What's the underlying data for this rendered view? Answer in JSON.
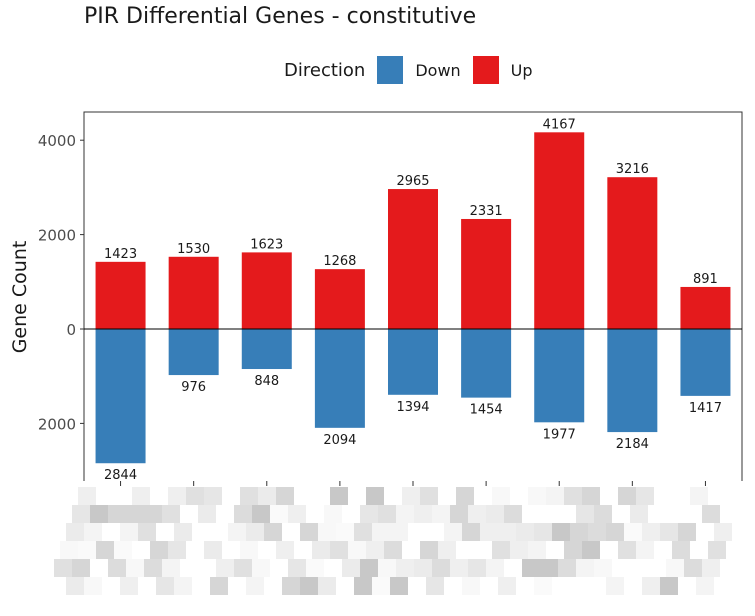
{
  "chart_data": {
    "type": "bar",
    "title": "PIR Differential Genes - constitutive",
    "xlabel": "",
    "ylabel": "Gene Count",
    "legend_title": "Direction",
    "legend_position": "top",
    "grid": false,
    "ylim": [
      -3200,
      4300
    ],
    "yticks": [
      {
        "value": 4000,
        "label": "4000"
      },
      {
        "value": 2000,
        "label": "2000"
      },
      {
        "value": 0,
        "label": "0"
      },
      {
        "value": -2000,
        "label": "2000"
      }
    ],
    "categories": [
      "",
      "",
      "",
      "",
      "",
      "",
      "",
      "",
      ""
    ],
    "series": [
      {
        "name": "Down",
        "color": "#377EB8",
        "values": [
          -2844,
          -976,
          -848,
          -2094,
          -1394,
          -1454,
          -1977,
          -2184,
          -1417
        ]
      },
      {
        "name": "Up",
        "color": "#E41A1C",
        "values": [
          1423,
          1530,
          1623,
          1268,
          2965,
          2331,
          4167,
          3216,
          891
        ]
      }
    ]
  }
}
